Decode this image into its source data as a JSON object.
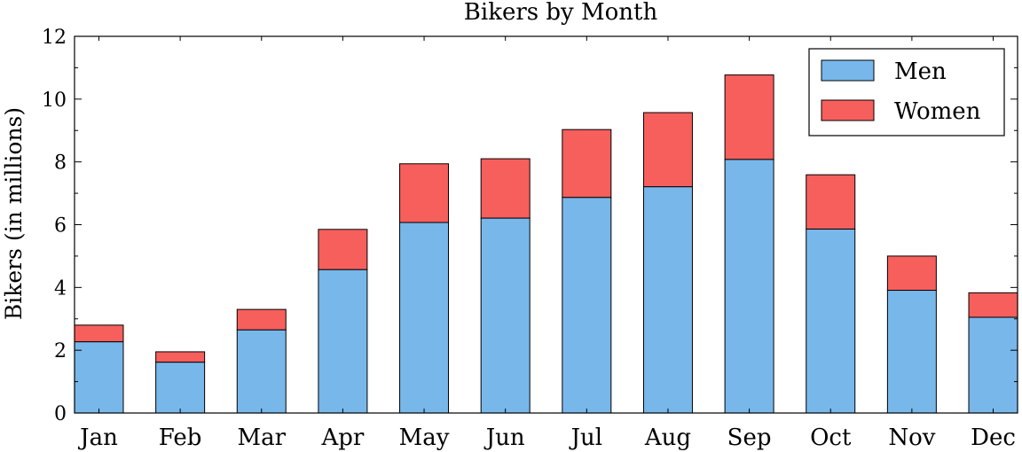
{
  "chart_data": {
    "type": "bar",
    "stacked": true,
    "title": "Bikers by Month",
    "xlabel": "",
    "ylabel": "Bikers (in millions)",
    "categories": [
      "Jan",
      "Feb",
      "Mar",
      "Apr",
      "May",
      "Jun",
      "Jul",
      "Aug",
      "Sep",
      "Oct",
      "Nov",
      "Dec"
    ],
    "series": [
      {
        "name": "Men",
        "color": "#78b7ea",
        "values": [
          2.27,
          1.62,
          2.65,
          4.57,
          6.07,
          6.21,
          6.87,
          7.21,
          8.08,
          5.86,
          3.91,
          3.05
        ]
      },
      {
        "name": "Women",
        "color": "#f65f5c",
        "values": [
          0.53,
          0.33,
          0.65,
          1.28,
          1.87,
          1.89,
          2.16,
          2.36,
          2.69,
          1.73,
          1.09,
          0.78
        ]
      }
    ],
    "ylim": [
      0,
      12
    ],
    "yticks": [
      0,
      2,
      4,
      6,
      8,
      10,
      12
    ],
    "grid": false,
    "legend_position": "top-right"
  }
}
